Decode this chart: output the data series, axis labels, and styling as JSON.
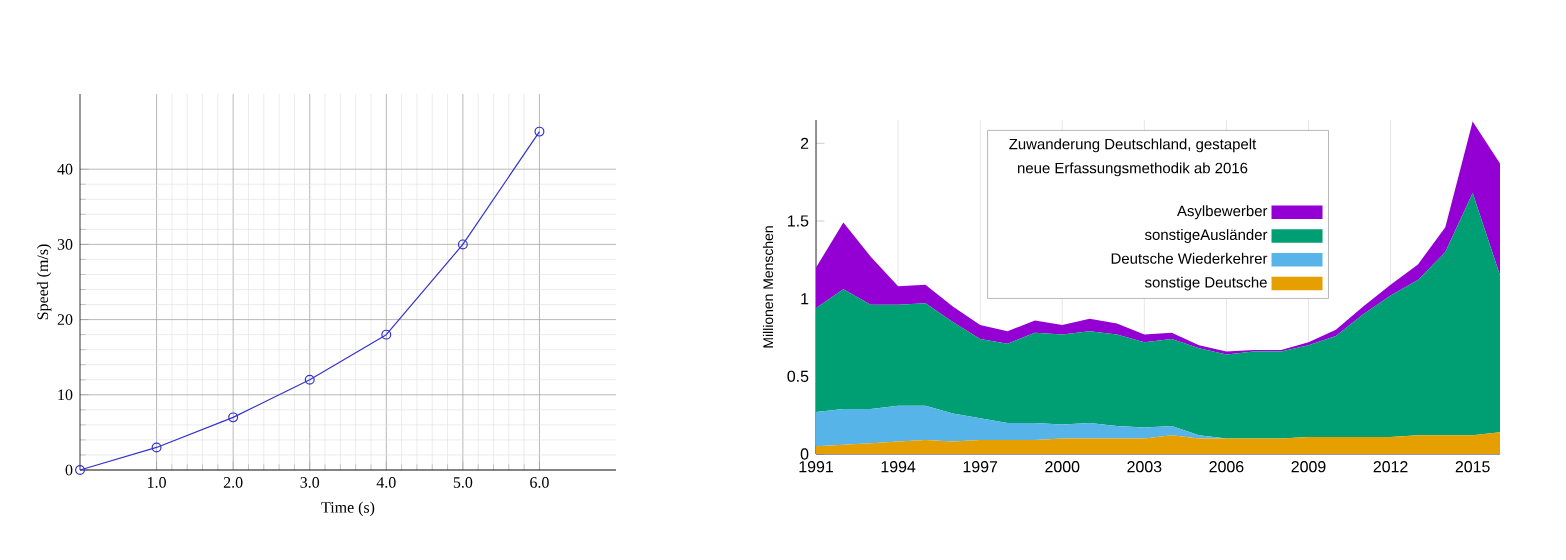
{
  "chart_data": [
    {
      "type": "line",
      "x": [
        0,
        1,
        2,
        3,
        4,
        5,
        6
      ],
      "values": [
        0,
        3,
        7,
        12,
        18,
        30,
        45
      ],
      "color": "#3333cc",
      "marker": "circle",
      "xlim": [
        0,
        7
      ],
      "ylim": [
        0,
        50
      ],
      "xticks": [
        {
          "value": 1,
          "label": "1.0"
        },
        {
          "value": 2,
          "label": "2.0"
        },
        {
          "value": 3,
          "label": "3.0"
        },
        {
          "value": 4,
          "label": "4.0"
        },
        {
          "value": 5,
          "label": "5.0"
        },
        {
          "value": 6,
          "label": "6.0"
        }
      ],
      "yticks": [
        0,
        10,
        20,
        30,
        40
      ],
      "xlabel": "Time (s)",
      "ylabel": "Speed (m/s)",
      "grid": true
    },
    {
      "type": "area",
      "stacked": true,
      "x": [
        1991,
        1992,
        1993,
        1994,
        1995,
        1996,
        1997,
        1998,
        1999,
        2000,
        2001,
        2002,
        2003,
        2004,
        2005,
        2006,
        2007,
        2008,
        2009,
        2010,
        2011,
        2012,
        2013,
        2014,
        2015,
        2016
      ],
      "series": [
        {
          "name": "sonstige Deutsche",
          "color": "#e69f00",
          "values": [
            0.05,
            0.06,
            0.07,
            0.08,
            0.09,
            0.08,
            0.09,
            0.09,
            0.09,
            0.1,
            0.1,
            0.1,
            0.1,
            0.12,
            0.1,
            0.1,
            0.1,
            0.1,
            0.11,
            0.11,
            0.11,
            0.11,
            0.12,
            0.12,
            0.12,
            0.14
          ]
        },
        {
          "name": "Deutsche Wiederkehrer",
          "color": "#56b4e9",
          "values": [
            0.22,
            0.23,
            0.22,
            0.23,
            0.22,
            0.18,
            0.14,
            0.11,
            0.11,
            0.09,
            0.1,
            0.08,
            0.07,
            0.06,
            0.02,
            0,
            0,
            0,
            0,
            0,
            0,
            0,
            0,
            0,
            0,
            0
          ]
        },
        {
          "name": "sonstigeAusländer",
          "color": "#009e73",
          "values": [
            0.67,
            0.77,
            0.67,
            0.65,
            0.66,
            0.59,
            0.51,
            0.51,
            0.58,
            0.58,
            0.59,
            0.59,
            0.55,
            0.56,
            0.56,
            0.54,
            0.56,
            0.56,
            0.59,
            0.65,
            0.79,
            0.91,
            1.0,
            1.18,
            1.56,
            1.01
          ]
        },
        {
          "name": "Asylbewerber",
          "color": "#9400d3",
          "values": [
            0.26,
            0.43,
            0.31,
            0.12,
            0.12,
            0.1,
            0.09,
            0.08,
            0.08,
            0.06,
            0.08,
            0.07,
            0.05,
            0.04,
            0.02,
            0.02,
            0.01,
            0.01,
            0.02,
            0.04,
            0.05,
            0.07,
            0.1,
            0.16,
            0.46,
            0.72
          ]
        }
      ],
      "xlim": [
        1991,
        2016
      ],
      "ylim": [
        0,
        2.15
      ],
      "xticks": [
        1991,
        1994,
        1997,
        2000,
        2003,
        2006,
        2009,
        2012,
        2015
      ],
      "yticks": [
        0,
        0.5,
        1,
        1.5,
        2
      ],
      "ylabel": "Millionen Menschen",
      "legend": "top",
      "legend_title": "Zuwanderung Deutschland, gestapelt neue Erfassungsmethodik ab 2016",
      "grid": "x"
    }
  ]
}
